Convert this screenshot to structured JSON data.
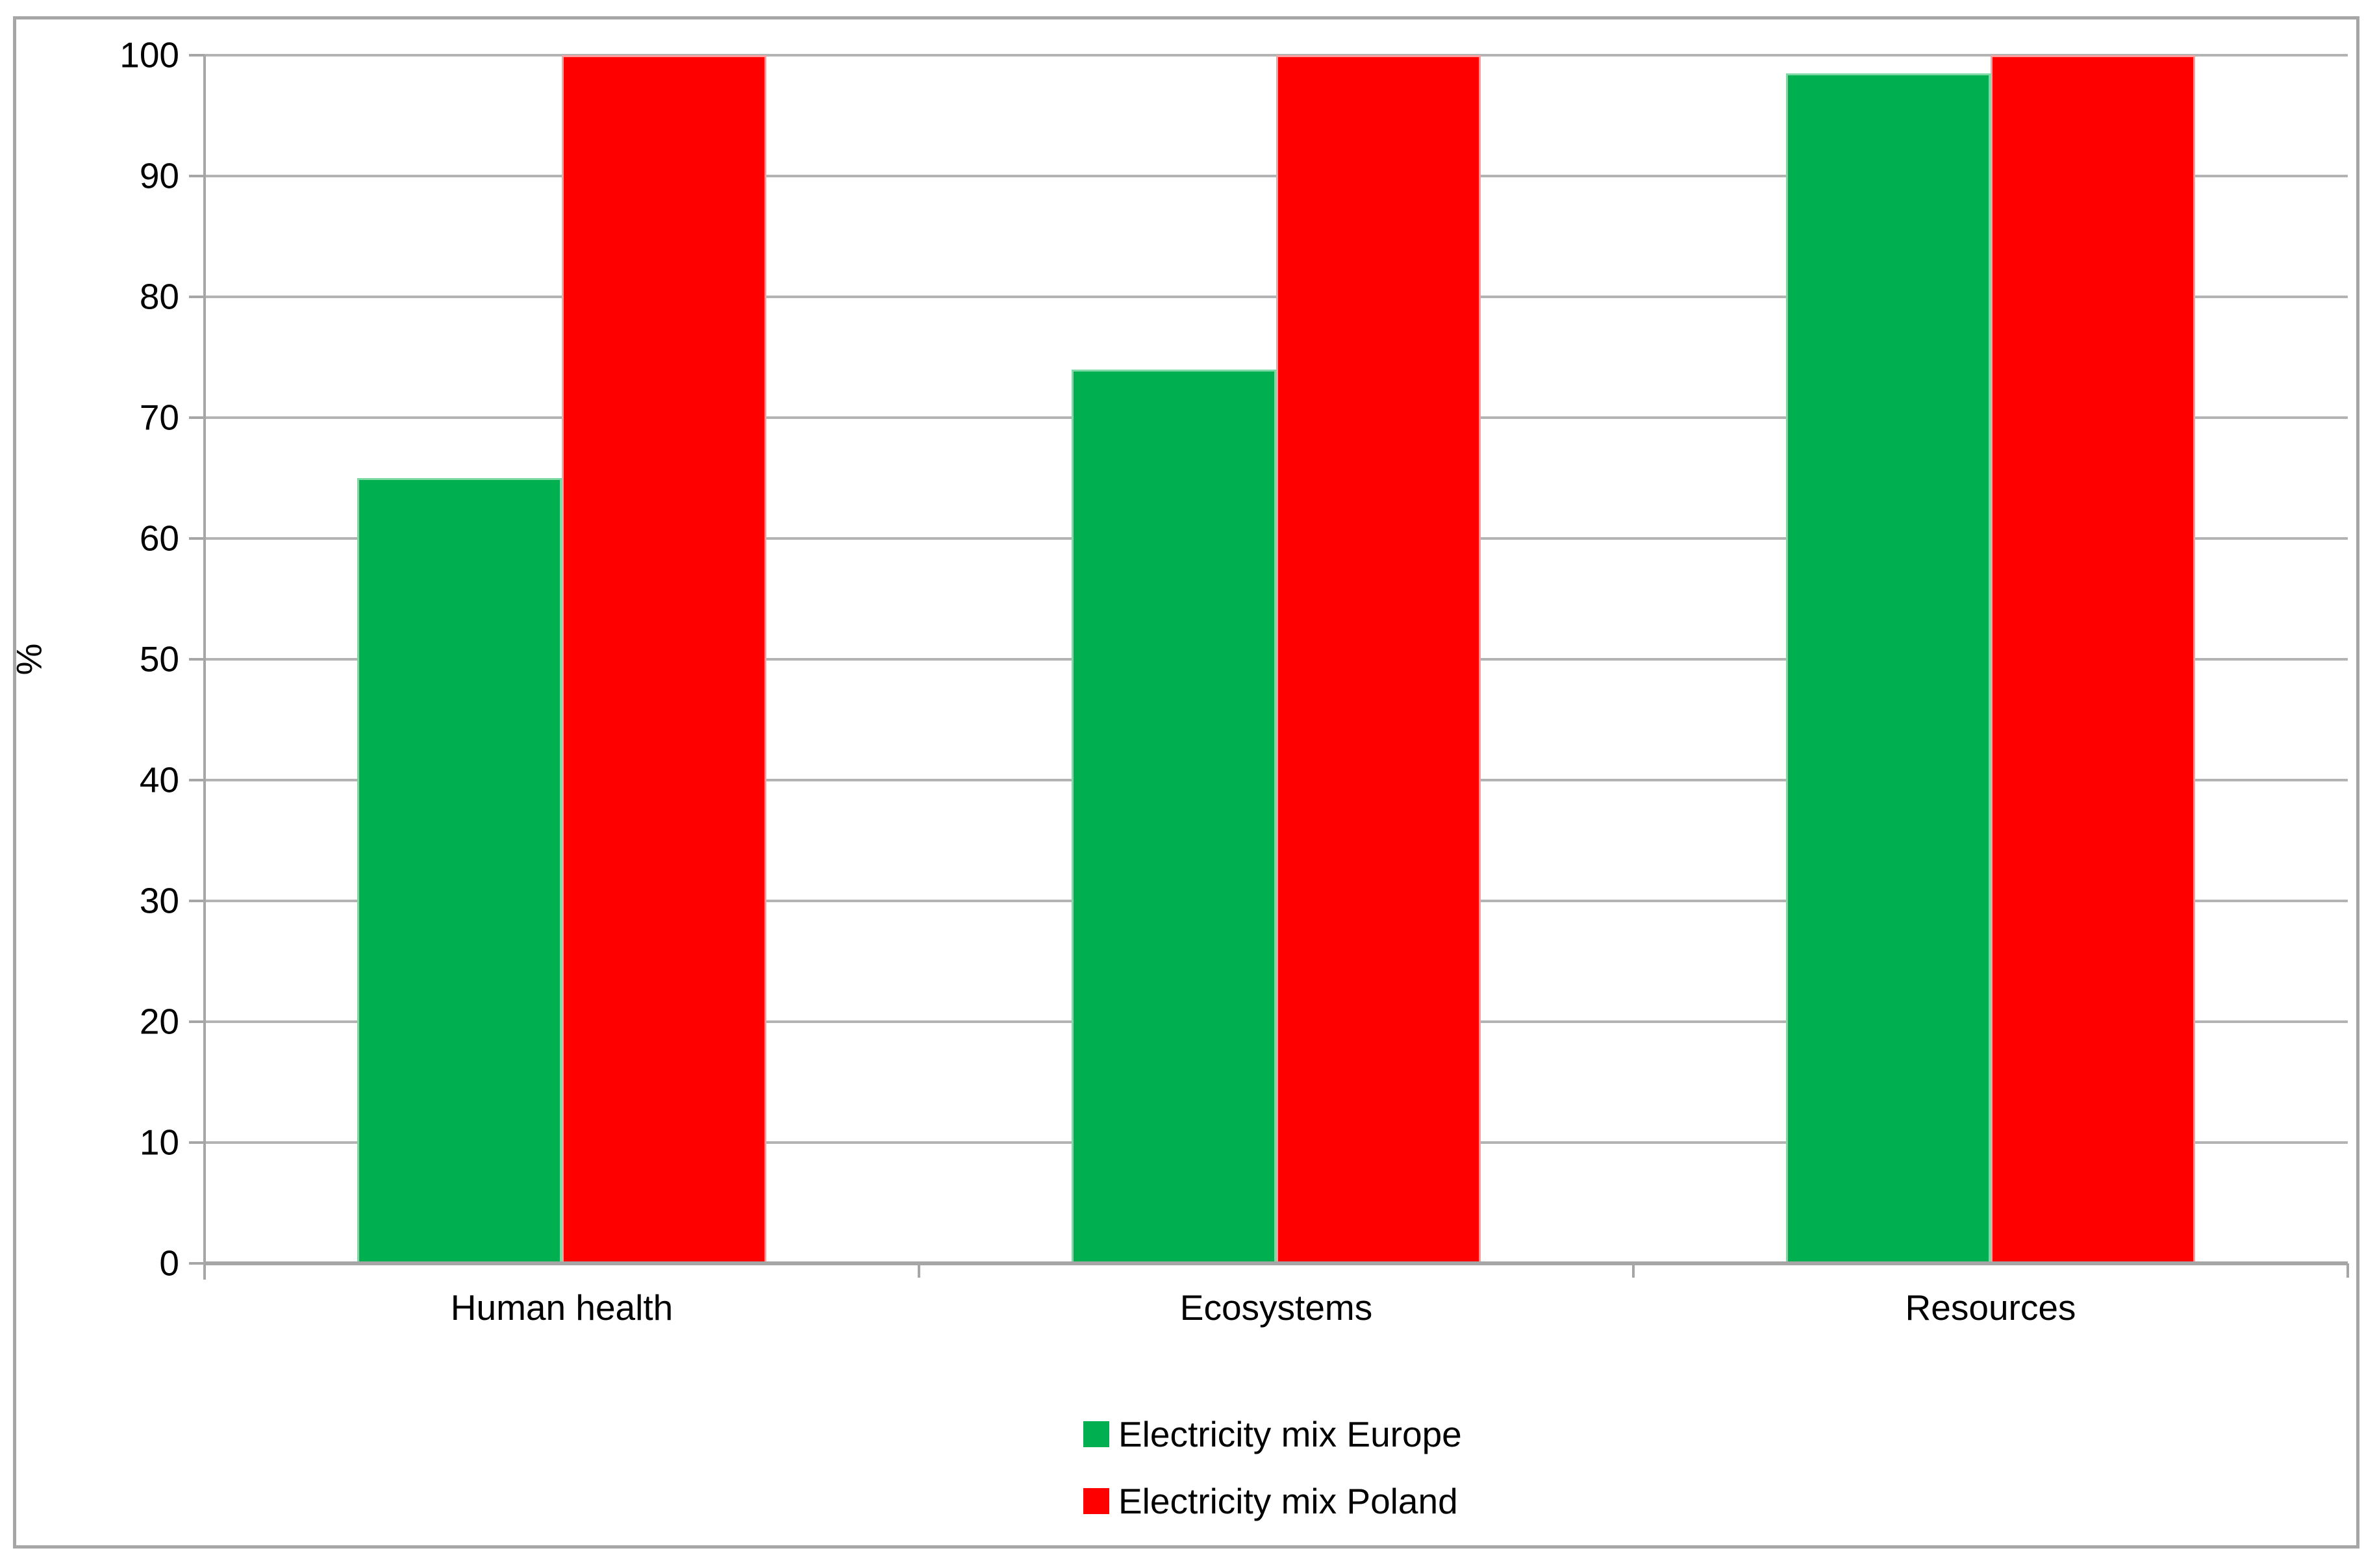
{
  "chart_data": {
    "type": "bar",
    "title": "",
    "categories": [
      "Human health",
      "Ecosystems",
      "Resources"
    ],
    "series": [
      {
        "name": "Electricity mix Europe",
        "color": "#00B050",
        "edge_color": "#7fd9a4",
        "values": [
          65,
          74,
          98.5
        ]
      },
      {
        "name": "Electricity mix Poland",
        "color": "#FF0000",
        "edge_color": "#ff9e9e",
        "values": [
          100,
          100,
          100
        ]
      }
    ],
    "xlabel": "",
    "ylabel": "%",
    "ylim": [
      0,
      100
    ],
    "ytick_step": 10,
    "yticks": [
      "0",
      "10",
      "20",
      "30",
      "40",
      "50",
      "60",
      "70",
      "80",
      "90",
      "100"
    ],
    "grid": "horizontal",
    "legend_position": "bottom-stacked"
  },
  "colors": {
    "background": "#ffffff",
    "grid": "#b3b3b3",
    "axis": "#a6a6a6",
    "border": "#a6a6a6",
    "text": "#000000"
  }
}
